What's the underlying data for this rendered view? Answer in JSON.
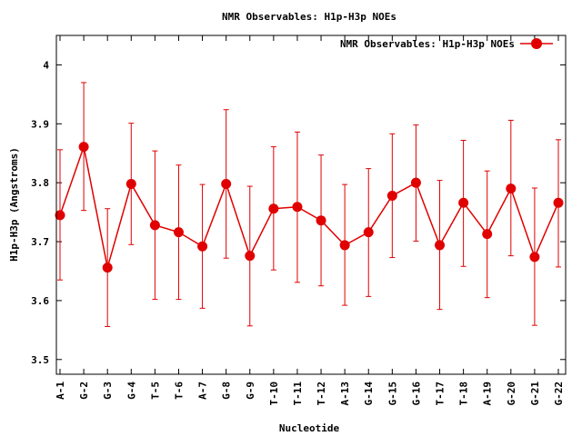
{
  "chart_data": {
    "type": "line",
    "title": "NMR Observables: H1p-H3p NOEs",
    "xlabel": "Nucleotide",
    "ylabel": "H1p-H3p (Angstroms)",
    "ylim": [
      3.475,
      4.05
    ],
    "yticks": [
      "3.5",
      "3.6",
      "3.7",
      "3.8",
      "3.9",
      "4"
    ],
    "categories": [
      "A-1",
      "G-2",
      "G-3",
      "G-4",
      "T-5",
      "T-6",
      "A-7",
      "G-8",
      "G-9",
      "T-10",
      "T-11",
      "T-12",
      "A-13",
      "G-14",
      "G-15",
      "G-16",
      "T-17",
      "T-18",
      "A-19",
      "G-20",
      "G-21",
      "G-22"
    ],
    "series": [
      {
        "name": "NMR Observables: H1p-H3p NOEs",
        "color": "#e00000",
        "values": [
          3.745,
          3.861,
          3.656,
          3.798,
          3.728,
          3.716,
          3.692,
          3.798,
          3.676,
          3.756,
          3.759,
          3.736,
          3.694,
          3.716,
          3.778,
          3.8,
          3.694,
          3.766,
          3.713,
          3.79,
          3.674,
          3.766
        ],
        "err_low": [
          3.635,
          3.753,
          3.556,
          3.695,
          3.602,
          3.602,
          3.587,
          3.672,
          3.557,
          3.652,
          3.631,
          3.625,
          3.592,
          3.607,
          3.673,
          3.701,
          3.585,
          3.658,
          3.605,
          3.676,
          3.558,
          3.657
        ],
        "err_high": [
          3.856,
          3.97,
          3.756,
          3.901,
          3.854,
          3.83,
          3.797,
          3.924,
          3.794,
          3.861,
          3.886,
          3.847,
          3.797,
          3.824,
          3.883,
          3.898,
          3.804,
          3.872,
          3.82,
          3.906,
          3.791,
          3.873
        ]
      }
    ],
    "grid": false,
    "legend": "top-right"
  }
}
